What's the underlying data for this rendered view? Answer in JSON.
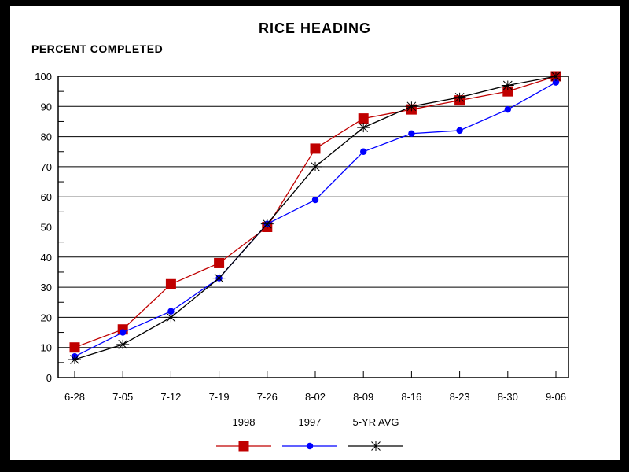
{
  "colors": {
    "frame": "#000000",
    "background": "#ffffff",
    "axis": "#000000",
    "series_1998": "#c00000",
    "series_1997": "#0000ff",
    "series_5yr_avg": "#000000"
  },
  "chart_data": {
    "type": "line",
    "title": "RICE HEADING",
    "ylabel": "PERCENT COMPLETED",
    "xlabel": "",
    "categories": [
      "6-28",
      "7-05",
      "7-12",
      "7-19",
      "7-26",
      "8-02",
      "8-09",
      "8-16",
      "8-23",
      "8-30",
      "9-06"
    ],
    "series": [
      {
        "name": "1998",
        "color": "#c00000",
        "marker": "square",
        "values": [
          10,
          16,
          31,
          38,
          50,
          76,
          86,
          89,
          92,
          95,
          100
        ]
      },
      {
        "name": "1997",
        "color": "#0000ff",
        "marker": "circle",
        "values": [
          7,
          15,
          22,
          33,
          51,
          59,
          75,
          81,
          82,
          89,
          98
        ]
      },
      {
        "name": "5-YR AVG",
        "color": "#000000",
        "marker": "asterisk",
        "values": [
          6,
          11,
          20,
          33,
          51,
          70,
          83,
          90,
          93,
          97,
          100
        ]
      }
    ],
    "ylim": [
      0,
      100
    ],
    "ytick_major": 10,
    "ytick_minor": 5,
    "grid": "horizontal",
    "legend_position": "bottom"
  }
}
